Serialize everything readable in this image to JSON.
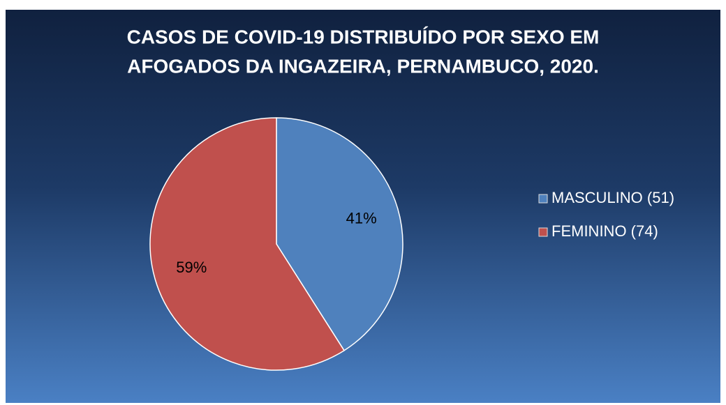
{
  "chart_data": {
    "type": "pie",
    "title": [
      "CASOS DE COVID-19 DISTRIBUÍDO POR SEXO EM",
      "AFOGADOS DA INGAZEIRA, PERNAMBUCO, 2020."
    ],
    "categories": [
      "MASCULINO (51)",
      "FEMININO (74)"
    ],
    "values": [
      41,
      59
    ],
    "value_labels": [
      "41%",
      "59%"
    ],
    "colors": [
      "#4f81bd",
      "#c0504d"
    ],
    "legend": "right"
  }
}
